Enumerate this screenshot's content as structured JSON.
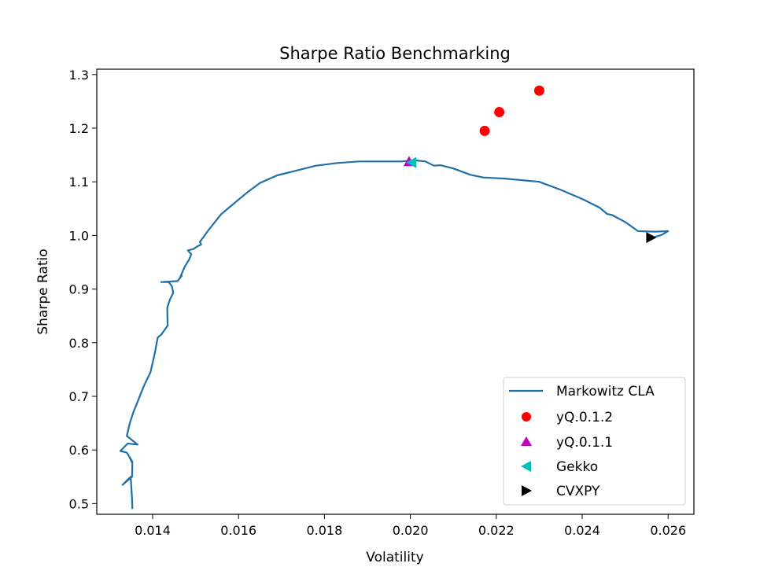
{
  "chart_data": {
    "type": "line",
    "title": "Sharpe Ratio Benchmarking",
    "xlabel": "Volatility",
    "ylabel": "Sharpe Ratio",
    "xlim": [
      0.0127,
      0.0266
    ],
    "ylim": [
      0.48,
      1.31
    ],
    "xticks": [
      0.014,
      0.016,
      0.018,
      0.02,
      0.022,
      0.024,
      0.026
    ],
    "xtick_labels": [
      "0.014",
      "0.016",
      "0.018",
      "0.020",
      "0.022",
      "0.024",
      "0.026"
    ],
    "yticks": [
      0.5,
      0.6,
      0.7,
      0.8,
      0.9,
      1.0,
      1.1,
      1.2,
      1.3
    ],
    "ytick_labels": [
      "0.5",
      "0.6",
      "0.7",
      "0.8",
      "0.9",
      "1.0",
      "1.1",
      "1.2",
      "1.3"
    ],
    "grid": false,
    "legend_position": "lower-right",
    "series": [
      {
        "name": "Markowitz CLA",
        "kind": "line",
        "color": "#1f6fa8",
        "points": [
          [
            0.01353,
            0.49
          ],
          [
            0.01352,
            0.51
          ],
          [
            0.01349,
            0.55
          ],
          [
            0.0133,
            0.535
          ],
          [
            0.01352,
            0.55
          ],
          [
            0.01353,
            0.575
          ],
          [
            0.01347,
            0.585
          ],
          [
            0.01353,
            0.578
          ],
          [
            0.0134,
            0.595
          ],
          [
            0.01325,
            0.598
          ],
          [
            0.01342,
            0.612
          ],
          [
            0.01365,
            0.61
          ],
          [
            0.0134,
            0.626
          ],
          [
            0.01347,
            0.65
          ],
          [
            0.01355,
            0.67
          ],
          [
            0.01365,
            0.69
          ],
          [
            0.0138,
            0.72
          ],
          [
            0.01395,
            0.745
          ],
          [
            0.01405,
            0.78
          ],
          [
            0.01412,
            0.81
          ],
          [
            0.0142,
            0.815
          ],
          [
            0.01435,
            0.832
          ],
          [
            0.01434,
            0.865
          ],
          [
            0.0144,
            0.88
          ],
          [
            0.01448,
            0.893
          ],
          [
            0.01445,
            0.905
          ],
          [
            0.01438,
            0.913
          ],
          [
            0.0142,
            0.913
          ],
          [
            0.01458,
            0.915
          ],
          [
            0.01468,
            0.925
          ],
          [
            0.01463,
            0.92
          ],
          [
            0.01475,
            0.942
          ],
          [
            0.01485,
            0.955
          ],
          [
            0.0149,
            0.965
          ],
          [
            0.01482,
            0.972
          ],
          [
            0.01496,
            0.975
          ],
          [
            0.01505,
            0.98
          ],
          [
            0.01513,
            0.983
          ],
          [
            0.0151,
            0.988
          ],
          [
            0.0153,
            1.01
          ],
          [
            0.01545,
            1.025
          ],
          [
            0.0156,
            1.04
          ],
          [
            0.0159,
            1.06
          ],
          [
            0.0162,
            1.08
          ],
          [
            0.0165,
            1.098
          ],
          [
            0.0169,
            1.112
          ],
          [
            0.0173,
            1.12
          ],
          [
            0.0178,
            1.13
          ],
          [
            0.0183,
            1.135
          ],
          [
            0.0188,
            1.138
          ],
          [
            0.0193,
            1.138
          ],
          [
            0.0198,
            1.138
          ],
          [
            0.0201,
            1.14
          ],
          [
            0.02035,
            1.138
          ],
          [
            0.02055,
            1.13
          ],
          [
            0.0207,
            1.131
          ],
          [
            0.021,
            1.125
          ],
          [
            0.0214,
            1.113
          ],
          [
            0.0217,
            1.108
          ],
          [
            0.0222,
            1.106
          ],
          [
            0.023,
            1.1
          ],
          [
            0.0235,
            1.085
          ],
          [
            0.024,
            1.068
          ],
          [
            0.0244,
            1.052
          ],
          [
            0.02458,
            1.04
          ],
          [
            0.0247,
            1.038
          ],
          [
            0.025,
            1.025
          ],
          [
            0.0253,
            1.008
          ],
          [
            0.0257,
            1.007
          ],
          [
            0.026,
            1.008
          ],
          [
            0.02585,
            1.001
          ],
          [
            0.02565,
            0.996
          ]
        ]
      },
      {
        "name": "yQ.0.1.2",
        "kind": "circle",
        "color": "#ff0000",
        "points": [
          [
            0.02173,
            1.195
          ],
          [
            0.02207,
            1.23
          ],
          [
            0.023,
            1.27
          ]
        ]
      },
      {
        "name": "yQ.0.1.1",
        "kind": "triangle-up",
        "color": "#bf00bf",
        "points": [
          [
            0.01997,
            1.138
          ]
        ]
      },
      {
        "name": "Gekko",
        "kind": "triangle-left",
        "color": "#00bfbf",
        "points": [
          [
            0.02003,
            1.136
          ]
        ]
      },
      {
        "name": "CVXPY",
        "kind": "triangle-right",
        "color": "#000000",
        "points": [
          [
            0.0256,
            0.996
          ]
        ]
      }
    ]
  }
}
